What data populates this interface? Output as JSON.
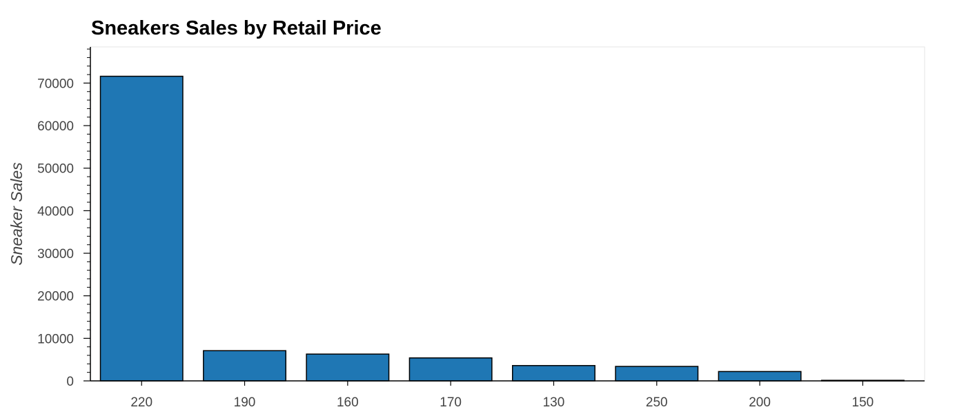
{
  "chart_data": {
    "type": "bar",
    "title": "Sneakers Sales by Retail Price",
    "xlabel": "",
    "ylabel": "Sneaker Sales",
    "categories": [
      "220",
      "190",
      "160",
      "170",
      "130",
      "250",
      "200",
      "150"
    ],
    "values": [
      71600,
      7100,
      6300,
      5400,
      3600,
      3400,
      2200,
      20
    ],
    "ylim": [
      0,
      78500
    ],
    "yticks": [
      0,
      10000,
      20000,
      30000,
      40000,
      50000,
      60000,
      70000
    ],
    "ytick_labels": [
      "0",
      "10000",
      "20000",
      "30000",
      "40000",
      "50000",
      "60000",
      "70000"
    ],
    "grid": false,
    "legend": "none",
    "bar_color": "#1f77b4",
    "bar_edge_color": "#000000"
  }
}
